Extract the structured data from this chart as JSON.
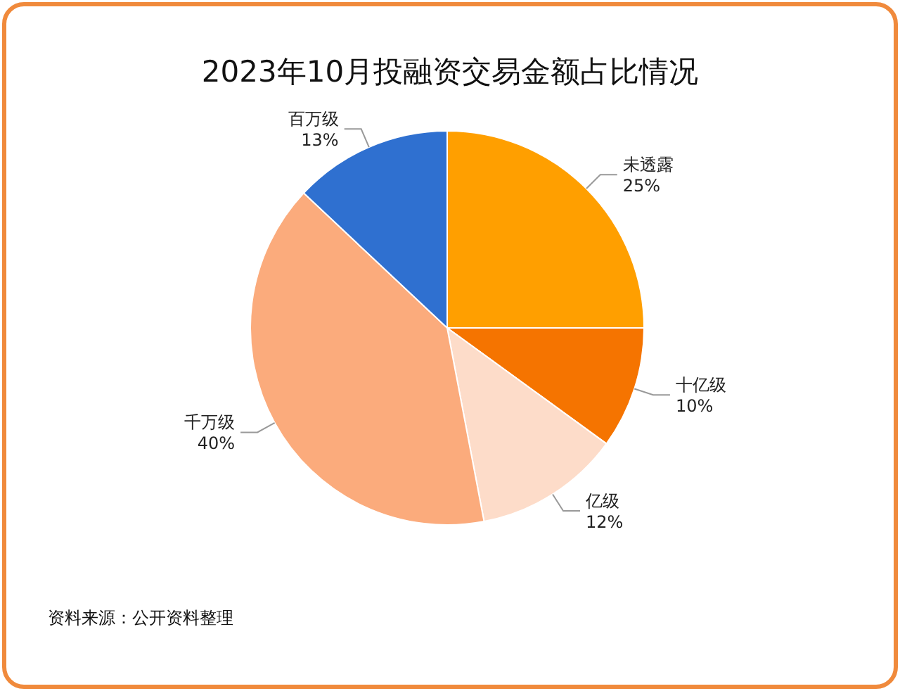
{
  "chart_data": {
    "type": "pie",
    "title": "2023年10月投融资交易金额占比情况",
    "categories": [
      "未透露",
      "十亿级",
      "亿级",
      "千万级",
      "百万级"
    ],
    "values": [
      25,
      10,
      12,
      40,
      13
    ],
    "colors": [
      "#ff9f00",
      "#f57400",
      "#fddcc9",
      "#fbab7c",
      "#2f70d0"
    ],
    "value_labels": [
      "25%",
      "10%",
      "12%",
      "40%",
      "13%"
    ],
    "annotations": [
      "资料来源：公开资料整理"
    ]
  }
}
